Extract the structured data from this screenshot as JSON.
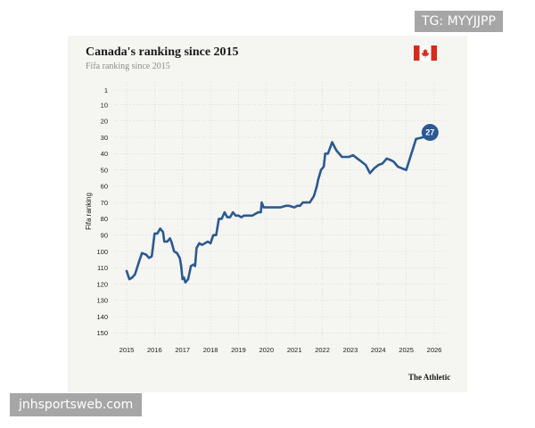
{
  "watermark_top": "TG: MYYJJPP",
  "watermark_bottom": "jnhsportsweb.com",
  "brand": "The Athletic",
  "flag_icon": "canada-flag-icon",
  "colors": {
    "line": "#2c5990",
    "card": "#f5f5f2",
    "flag_red": "#d52b1e"
  },
  "chart_data": {
    "type": "line",
    "title": "Canada's ranking since 2015",
    "subtitle": "Fifa ranking since 2015",
    "ylabel": "Fifa ranking",
    "xlabel": "",
    "yreversed": true,
    "ylim": [
      1,
      150
    ],
    "xlim": [
      2015,
      2026
    ],
    "yticks": [
      1,
      10,
      20,
      30,
      40,
      50,
      60,
      70,
      80,
      90,
      100,
      110,
      120,
      130,
      140,
      150
    ],
    "xticks": [
      "2015",
      "2016",
      "2017",
      "2018",
      "2019",
      "2020",
      "2021",
      "2022",
      "2023",
      "2024",
      "2025",
      "2026"
    ],
    "grid": true,
    "end_label": "27",
    "series": [
      {
        "x": [
          2015.0,
          2015.1,
          2015.2,
          2015.3,
          2015.45,
          2015.55,
          2015.7,
          2015.8,
          2015.9,
          2016.0,
          2016.1,
          2016.2,
          2016.3,
          2016.35,
          2016.45,
          2016.55,
          2016.6,
          2016.7,
          2016.8,
          2016.9,
          2016.95,
          2017.0,
          2017.05,
          2017.1,
          2017.2,
          2017.3,
          2017.4,
          2017.45,
          2017.5,
          2017.6,
          2017.7,
          2017.8,
          2017.9,
          2018.0,
          2018.1,
          2018.2,
          2018.3,
          2018.4,
          2018.5,
          2018.6,
          2018.7,
          2018.8,
          2018.9,
          2019.0,
          2019.1,
          2019.2,
          2019.3,
          2019.5,
          2019.7,
          2019.8,
          2019.83,
          2019.9,
          2020.0,
          2020.5,
          2020.7,
          2020.8,
          2021.0,
          2021.1,
          2021.2,
          2021.3,
          2021.4,
          2021.55,
          2021.7,
          2021.8,
          2021.85,
          2021.95,
          2022.05,
          2022.1,
          2022.2,
          2022.35,
          2022.5,
          2022.7,
          2022.8,
          2022.95,
          2023.1,
          2023.25,
          2023.4,
          2023.55,
          2023.7,
          2023.85,
          2024.0,
          2024.15,
          2024.3,
          2024.45,
          2024.55,
          2024.7,
          2024.85,
          2025.0,
          2025.35,
          2025.6,
          2025.85
        ],
        "y": [
          112,
          117,
          116,
          114,
          106,
          101,
          102,
          104,
          103,
          89,
          89,
          86,
          88,
          94,
          94,
          92,
          94,
          100,
          101,
          104,
          109,
          117,
          116,
          119,
          117,
          109,
          108,
          109,
          98,
          95,
          96,
          95,
          94,
          95,
          90,
          90,
          80,
          80,
          76,
          79,
          79,
          76,
          78,
          78,
          79,
          78,
          78,
          78,
          76,
          76,
          70,
          73,
          73,
          73,
          72,
          72,
          73,
          72,
          72,
          70,
          70,
          70,
          66,
          60,
          56,
          50,
          48,
          40,
          40,
          33,
          38,
          42,
          42,
          42,
          41,
          43,
          45,
          47,
          52,
          49,
          47,
          46,
          43,
          44,
          45,
          48,
          49,
          50,
          31,
          30,
          27
        ]
      }
    ]
  }
}
